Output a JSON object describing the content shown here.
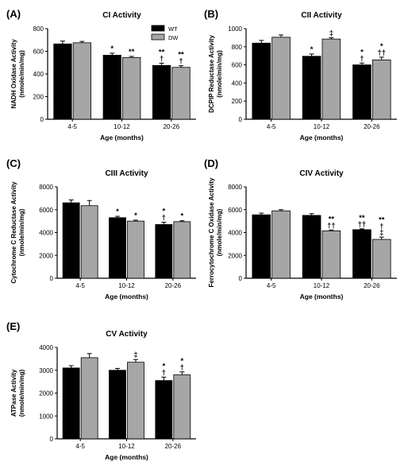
{
  "chart_data": [
    {
      "type": "bar",
      "panel": "(A)",
      "title": "CI Activity",
      "xlabel": "Age  (months)",
      "ylabel": "NADH Oxidase Activity\n(nmole/min/mg)",
      "ylim": [
        0,
        800
      ],
      "yticks": [
        0,
        200,
        400,
        600,
        800
      ],
      "categories": [
        "4-5",
        "10-12",
        "20-26"
      ],
      "series": [
        {
          "name": "WT",
          "values": [
            665,
            565,
            475
          ],
          "errors": [
            25,
            18,
            20
          ]
        },
        {
          "name": "DW",
          "values": [
            675,
            545,
            458
          ],
          "errors": [
            12,
            10,
            15
          ]
        }
      ],
      "annotations": [
        {
          "category": 1,
          "series": 0,
          "text": [
            "*"
          ]
        },
        {
          "category": 1,
          "series": 1,
          "text": [
            "**"
          ]
        },
        {
          "category": 2,
          "series": 0,
          "text": [
            "**",
            "†"
          ]
        },
        {
          "category": 2,
          "series": 1,
          "text": [
            "**",
            "†"
          ]
        }
      ],
      "legend": {
        "placement": "top-right",
        "entries": [
          "WT",
          "DW"
        ]
      }
    },
    {
      "type": "bar",
      "panel": "(B)",
      "title": "CII Activity",
      "xlabel": "Age  (months)",
      "ylabel": "DCPIP Reductase Activity\n(nmole/min/mg)",
      "ylim": [
        0,
        1000
      ],
      "yticks": [
        0,
        200,
        400,
        600,
        800,
        1000
      ],
      "categories": [
        "4-5",
        "10-12",
        "20-26"
      ],
      "series": [
        {
          "name": "WT",
          "values": [
            840,
            695,
            600
          ],
          "errors": [
            30,
            25,
            20
          ]
        },
        {
          "name": "DW",
          "values": [
            905,
            885,
            655
          ],
          "errors": [
            25,
            15,
            30
          ]
        }
      ],
      "annotations": [
        {
          "category": 1,
          "series": 0,
          "text": [
            "*"
          ]
        },
        {
          "category": 1,
          "series": 1,
          "text": [
            "‡"
          ]
        },
        {
          "category": 2,
          "series": 0,
          "text": [
            "*",
            "†"
          ]
        },
        {
          "category": 2,
          "series": 1,
          "text": [
            "*",
            "††"
          ]
        }
      ]
    },
    {
      "type": "bar",
      "panel": "(C)",
      "title": "CIII Activity",
      "xlabel": "Age  (months)",
      "ylabel": "Cytochrome C Reductase Activity\n(nmole/min/mg)",
      "ylim": [
        0,
        8000
      ],
      "yticks": [
        0,
        2000,
        4000,
        6000,
        8000
      ],
      "categories": [
        "4-5",
        "10-12",
        "20-26"
      ],
      "series": [
        {
          "name": "WT",
          "values": [
            6600,
            5300,
            4700
          ],
          "errors": [
            250,
            120,
            200
          ]
        },
        {
          "name": "DW",
          "values": [
            6350,
            5000,
            4950
          ],
          "errors": [
            450,
            80,
            80
          ]
        }
      ],
      "annotations": [
        {
          "category": 1,
          "series": 0,
          "text": [
            "*"
          ]
        },
        {
          "category": 1,
          "series": 1,
          "text": [
            "*"
          ]
        },
        {
          "category": 2,
          "series": 0,
          "text": [
            "*",
            "†"
          ]
        },
        {
          "category": 2,
          "series": 1,
          "text": [
            "*"
          ]
        }
      ]
    },
    {
      "type": "bar",
      "panel": "(D)",
      "title": "CIV Activity",
      "xlabel": "Age  (months)",
      "ylabel": "Ferrocytochrome C Oxidase Activity\n(nmole/min/mg)",
      "ylim": [
        0,
        8000
      ],
      "yticks": [
        0,
        2000,
        4000,
        6000,
        8000
      ],
      "categories": [
        "4-5",
        "10-12",
        "20-26"
      ],
      "series": [
        {
          "name": "WT",
          "values": [
            5550,
            5500,
            4250
          ],
          "errors": [
            150,
            150,
            70
          ]
        },
        {
          "name": "DW",
          "values": [
            5900,
            4150,
            3400
          ],
          "errors": [
            100,
            70,
            200
          ]
        }
      ],
      "annotations": [
        {
          "category": 1,
          "series": 1,
          "text": [
            "**",
            "††"
          ]
        },
        {
          "category": 2,
          "series": 0,
          "text": [
            "**",
            "††"
          ]
        },
        {
          "category": 2,
          "series": 1,
          "text": [
            "**",
            "†",
            "‡"
          ]
        }
      ]
    },
    {
      "type": "bar",
      "panel": "(E)",
      "title": "CV Activity",
      "xlabel": "Age  (months)",
      "ylabel": "ATPase Activity\n(nmole/min/mg)",
      "ylim": [
        0,
        4000
      ],
      "yticks": [
        0,
        1000,
        2000,
        3000,
        4000
      ],
      "categories": [
        "4-5",
        "10-12",
        "20-26"
      ],
      "series": [
        {
          "name": "WT",
          "values": [
            3100,
            3000,
            2550
          ],
          "errors": [
            100,
            80,
            150
          ]
        },
        {
          "name": "DW",
          "values": [
            3550,
            3350,
            2800
          ],
          "errors": [
            180,
            120,
            130
          ]
        }
      ],
      "annotations": [
        {
          "category": 1,
          "series": 1,
          "text": [
            "‡"
          ]
        },
        {
          "category": 2,
          "series": 0,
          "text": [
            "*",
            "†"
          ]
        },
        {
          "category": 2,
          "series": 1,
          "text": [
            "*",
            "†"
          ]
        }
      ]
    }
  ],
  "colors": {
    "WT": "#000000",
    "DW": "#a6a6a6",
    "axis": "#000000"
  }
}
